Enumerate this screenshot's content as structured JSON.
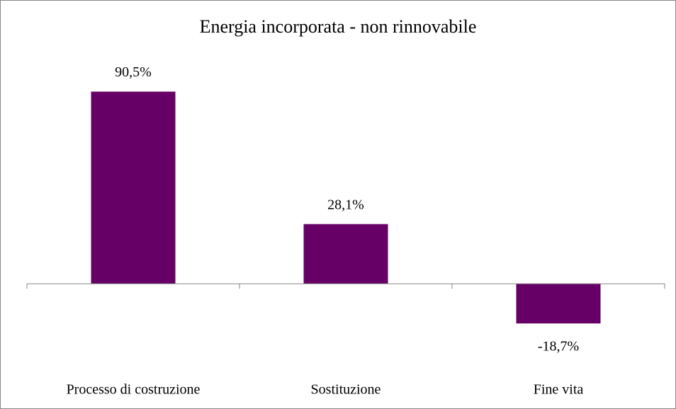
{
  "chart_data": {
    "type": "bar",
    "title": "Energia incorporata - non rinnovabile",
    "categories": [
      "Processo di costruzione",
      "Sostituzione",
      "Fine vita"
    ],
    "values": [
      90.5,
      28.1,
      -18.7
    ],
    "value_labels": [
      "90,5%",
      "28,1%",
      "-18,7%"
    ],
    "color": "#660066"
  }
}
